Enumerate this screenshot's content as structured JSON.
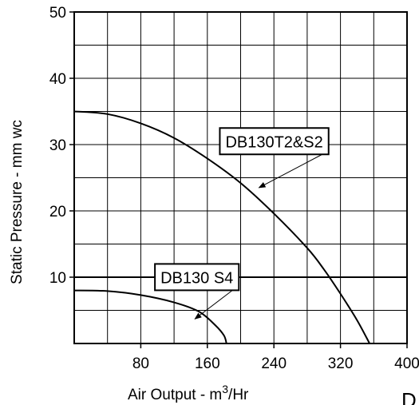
{
  "chart_data": {
    "type": "line",
    "title": "",
    "xlabel": "Air Output - m",
    "xlabel_sup": "3",
    "xlabel_suffix": "/Hr",
    "ylabel": "Static Pressure -  mm wc",
    "xlim": [
      0,
      400
    ],
    "ylim": [
      0,
      50
    ],
    "xticks": [
      80,
      160,
      240,
      320,
      400
    ],
    "yticks": [
      10,
      20,
      30,
      40,
      50
    ],
    "x_grid_step": 40,
    "y_grid_step": 5,
    "grid": true,
    "reference_line_y": 10,
    "series": [
      {
        "name": "DB130T2&S2",
        "color": "#000000",
        "points": [
          [
            0,
            35
          ],
          [
            40,
            34.6
          ],
          [
            80,
            33.2
          ],
          [
            120,
            31
          ],
          [
            160,
            27.9
          ],
          [
            200,
            24.2
          ],
          [
            240,
            19.6
          ],
          [
            280,
            14.4
          ],
          [
            300,
            11.2
          ],
          [
            320,
            7.5
          ],
          [
            340,
            3.5
          ],
          [
            355,
            0
          ]
        ]
      },
      {
        "name": "DB130 S4",
        "color": "#000000",
        "points": [
          [
            0,
            8
          ],
          [
            40,
            7.9
          ],
          [
            80,
            7.3
          ],
          [
            120,
            6.2
          ],
          [
            150,
            4.8
          ],
          [
            170,
            2.7
          ],
          [
            180,
            1.2
          ],
          [
            183,
            0
          ]
        ]
      }
    ],
    "annotations": [
      {
        "label": "DB130T2&S2",
        "box_data": [
          175,
          32.5
        ],
        "arrow_to": [
          222,
          23.5
        ]
      },
      {
        "label": "DB130 S4",
        "box_data": [
          97,
          12
        ],
        "arrow_to": [
          145,
          3.7
        ]
      }
    ],
    "corner_fragment": "D"
  }
}
